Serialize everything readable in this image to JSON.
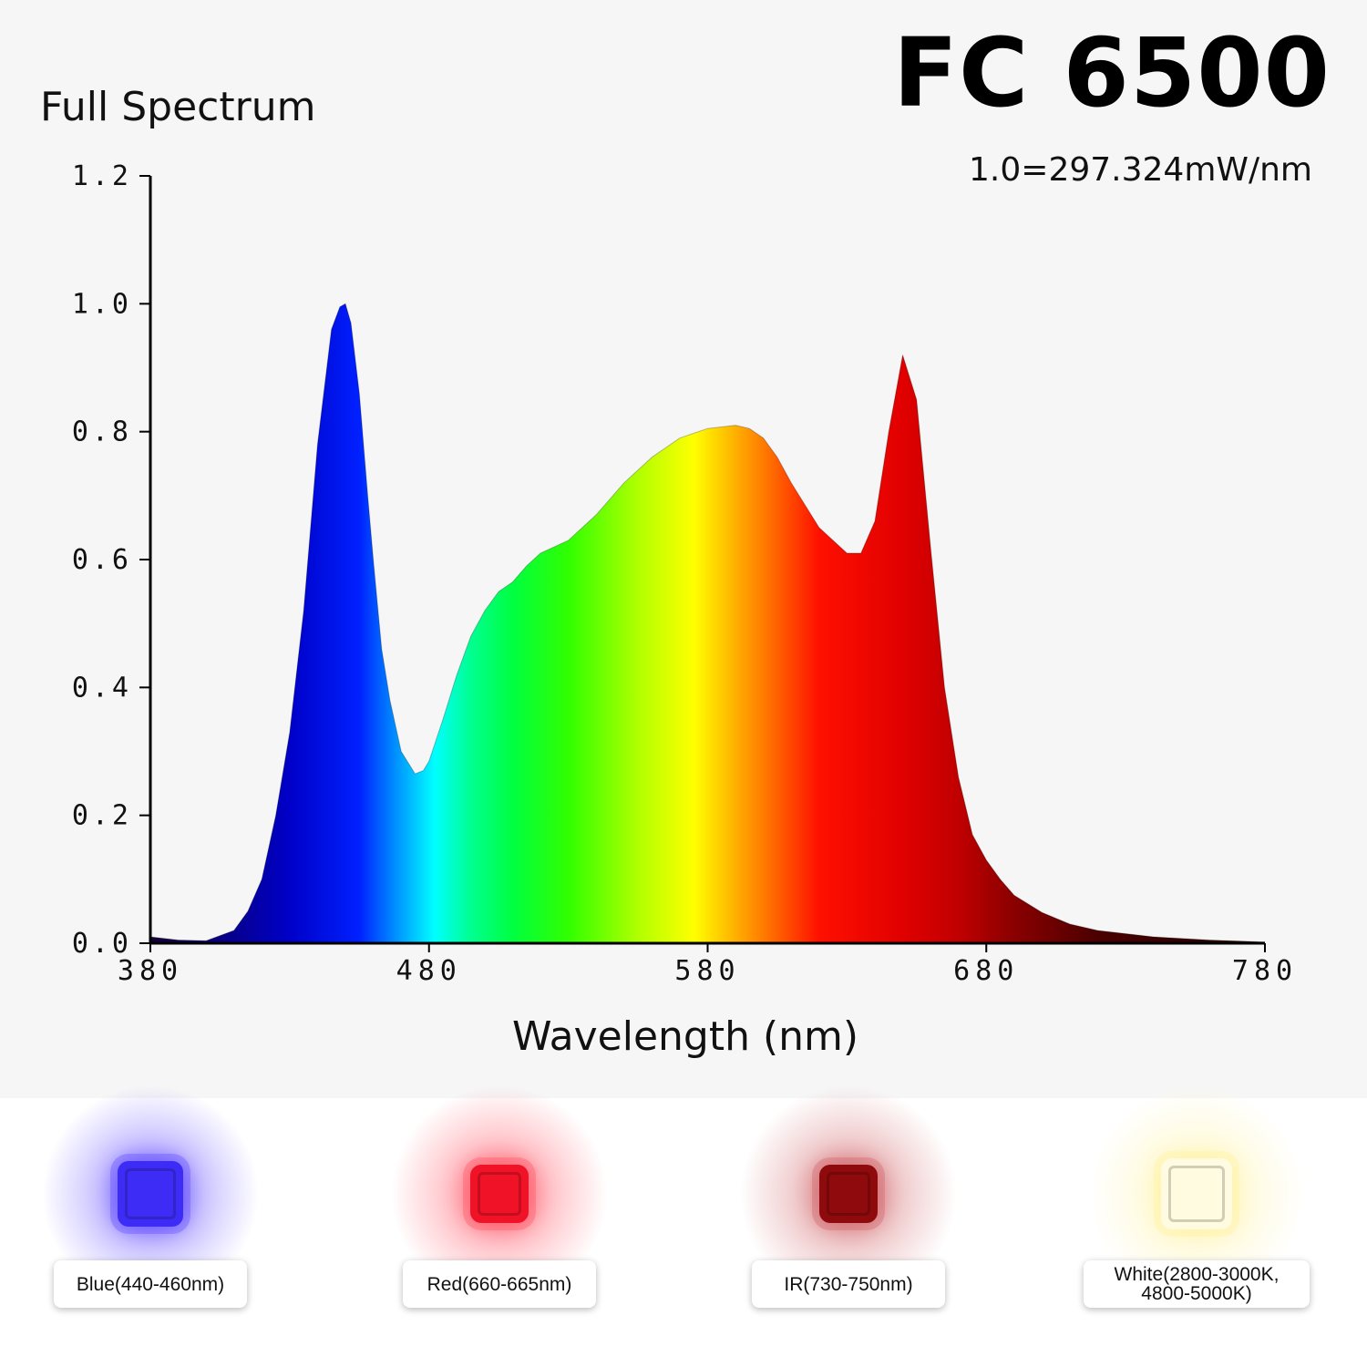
{
  "header": {
    "product_title": "FC 6500",
    "subtitle": "Full Spectrum",
    "unit_note": "1.0=297.324mW/nm"
  },
  "chart_data": {
    "type": "area",
    "xlabel": "Wavelength (nm)",
    "ylabel": "",
    "xlim": [
      380,
      780
    ],
    "ylim": [
      0,
      1.2
    ],
    "x_ticks": [
      "380",
      "480",
      "580",
      "680",
      "780"
    ],
    "y_ticks": [
      "0.0",
      "0.2",
      "0.4",
      "0.6",
      "0.8",
      "1.0",
      "1.2"
    ],
    "fill": "visible-spectrum gradient by wavelength",
    "series": [
      {
        "x": [
          380,
          390,
          400,
          410,
          415,
          420,
          425,
          430,
          435,
          440,
          445,
          448,
          450,
          452,
          455,
          458,
          460,
          463,
          466,
          470,
          475,
          478,
          480,
          485,
          490,
          495,
          500,
          505,
          510,
          515,
          520,
          530,
          540,
          550,
          560,
          570,
          580,
          590,
          595,
          600,
          605,
          610,
          620,
          630,
          635,
          640,
          645,
          650,
          655,
          660,
          665,
          670,
          675,
          680,
          685,
          690,
          700,
          710,
          720,
          740,
          760,
          780
        ],
        "y": [
          0.01,
          0.005,
          0.004,
          0.02,
          0.05,
          0.1,
          0.2,
          0.33,
          0.52,
          0.78,
          0.96,
          0.995,
          1.0,
          0.97,
          0.86,
          0.7,
          0.6,
          0.46,
          0.38,
          0.3,
          0.265,
          0.27,
          0.285,
          0.35,
          0.42,
          0.48,
          0.52,
          0.55,
          0.565,
          0.59,
          0.61,
          0.63,
          0.67,
          0.72,
          0.76,
          0.79,
          0.805,
          0.81,
          0.805,
          0.79,
          0.76,
          0.72,
          0.65,
          0.61,
          0.61,
          0.66,
          0.8,
          0.92,
          0.85,
          0.62,
          0.4,
          0.26,
          0.17,
          0.13,
          0.1,
          0.075,
          0.048,
          0.03,
          0.02,
          0.01,
          0.005,
          0.002
        ]
      }
    ]
  },
  "leds": [
    {
      "label": "Blue(440-460nm)",
      "color": "#3d2cf5",
      "glow": "#6a55ff",
      "chip_size": 72
    },
    {
      "label": "Red(660-665nm)",
      "color": "#f01226",
      "glow": "#ff5a6a",
      "chip_size": 64
    },
    {
      "label": "IR(730-750nm)",
      "color": "#8e0a0c",
      "glow": "#d36a6e",
      "chip_size": 64
    },
    {
      "label_line1": "White(2800-3000K,",
      "label_line2": "4800-5000K)",
      "color": "#fffbe0",
      "glow": "#fff3a8",
      "chip_size": 78
    }
  ]
}
